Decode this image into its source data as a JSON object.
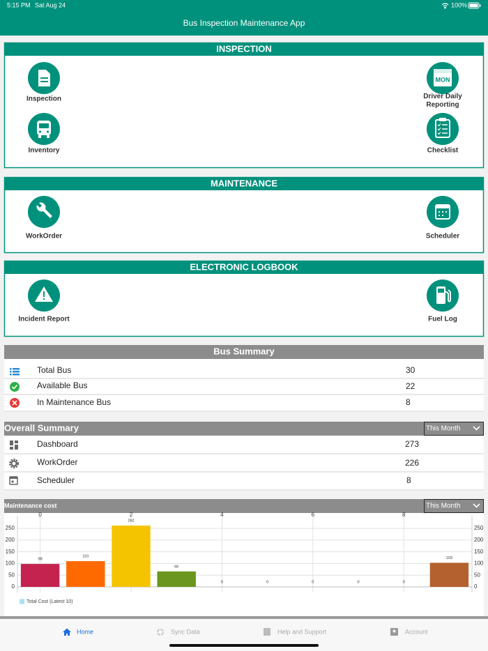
{
  "status_bar": {
    "time": "5:15 PM",
    "date": "Sat Aug 24",
    "battery": "100%"
  },
  "header": {
    "title": "Bus Inspection Maintenance App"
  },
  "sections": [
    {
      "title": "INSPECTION",
      "items": [
        {
          "label": "Inspection"
        },
        {
          "label": "Driver Daily Reporting",
          "icon_text": "MON"
        },
        {
          "label": "Inventory"
        },
        {
          "label": "Checklist"
        }
      ]
    },
    {
      "title": "MAINTENANCE",
      "items": [
        {
          "label": "WorkOrder"
        },
        {
          "label": "Scheduler"
        }
      ]
    },
    {
      "title": "ELECTRONIC LOGBOOK",
      "items": [
        {
          "label": "Incident Report"
        },
        {
          "label": "Fuel Log"
        }
      ]
    }
  ],
  "bus_summary": {
    "title": "Bus Summary",
    "rows": [
      {
        "label": "Total Bus",
        "value": 30
      },
      {
        "label": "Available Bus",
        "value": 22
      },
      {
        "label": "In Maintenance Bus",
        "value": 8
      }
    ]
  },
  "overall_summary": {
    "title": "Overall Summary",
    "filter": "This Month",
    "rows": [
      {
        "label": "Dashboard",
        "value": 273
      },
      {
        "label": "WorkOrder",
        "value": 226
      },
      {
        "label": "Scheduler",
        "value": 8
      }
    ]
  },
  "maintenance_cost": {
    "title": "Maintenance cost",
    "filter": "This Month",
    "chart_data": {
      "type": "bar",
      "x": [
        0,
        1,
        2,
        3,
        4,
        5,
        6,
        7,
        8,
        9
      ],
      "xlim": [
        -0.5,
        9.5
      ],
      "xticks": [
        0,
        2,
        4,
        6,
        8
      ],
      "ylim": [
        0,
        280
      ],
      "yticks": [
        0,
        50,
        100,
        150,
        200,
        250
      ],
      "grid": true,
      "series": [
        {
          "name": "Total Cost (Latest 10)",
          "color": "#a6e3f0",
          "values": [
            98,
            110,
            262,
            66,
            0,
            0,
            0,
            0,
            0,
            103
          ],
          "colors": [
            "#c4234f",
            "#ff6a00",
            "#f5c400",
            "#6b961f",
            "#2e7dd1",
            "#7e57c2",
            "#00a0a0",
            "#e91e63",
            "#8bc34a",
            "#b5602f"
          ]
        }
      ]
    }
  },
  "tab_bar": {
    "tabs": [
      "Home",
      "Sync Data",
      "Help and Support",
      "Account"
    ]
  }
}
